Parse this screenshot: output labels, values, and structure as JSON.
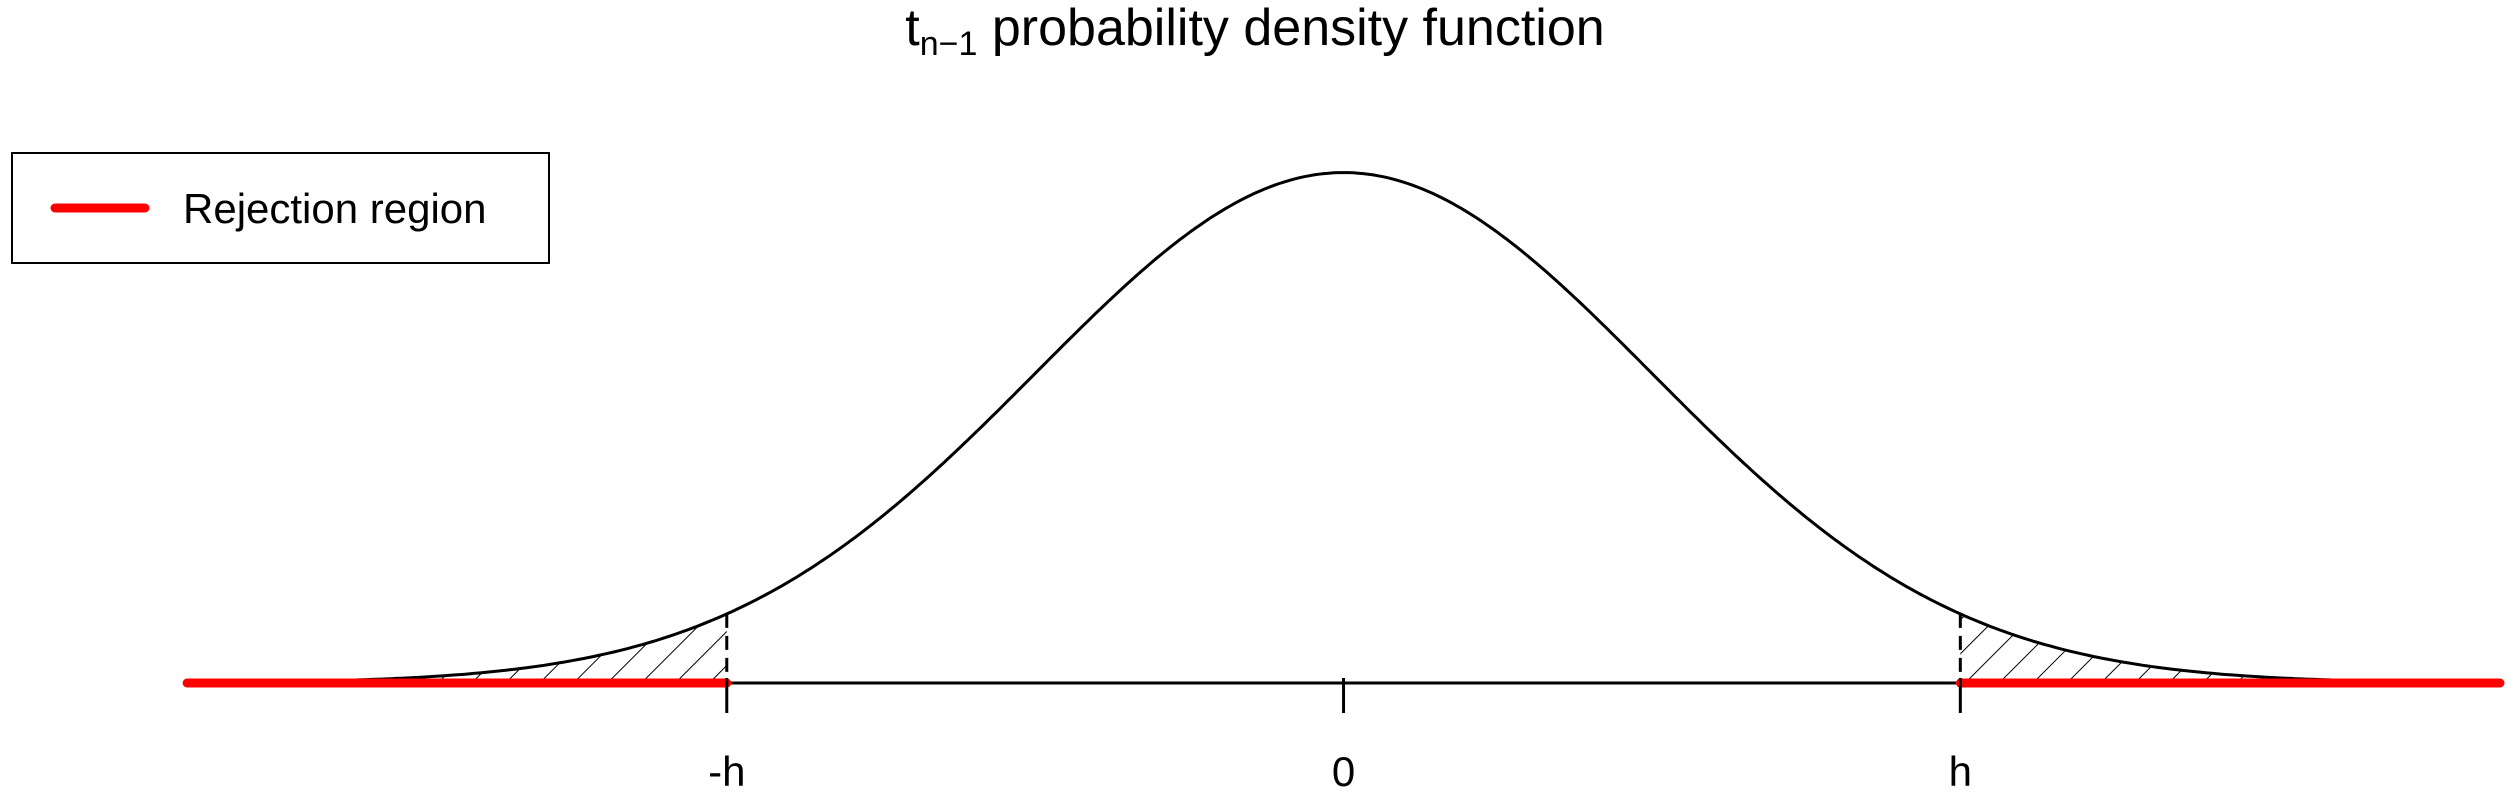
{
  "chart_data": {
    "type": "line",
    "title": {
      "main": "t",
      "subscript": "n−1",
      "rest": " probability density function"
    },
    "xlim": [
      -4,
      3.75
    ],
    "ylim": [
      0,
      0.4
    ],
    "grid": false,
    "density_curve": {
      "distribution": "t",
      "x_range": [
        -3.2,
        3.2
      ],
      "peak_at": 0
    },
    "critical_value": 2,
    "x_ticks": [
      {
        "value": -2,
        "label": "-h"
      },
      {
        "value": 0,
        "label": "0"
      },
      {
        "value": 2,
        "label": "h"
      }
    ],
    "rejection_regions": [
      {
        "from": -3.75,
        "to": -2
      },
      {
        "from": 2,
        "to": 3.75
      }
    ],
    "legend": {
      "placement": "top-left",
      "entries": [
        {
          "label": "Rejection region",
          "color": "#ff0000"
        }
      ]
    },
    "colors": {
      "curve": "#000000",
      "rejection": "#ff0000",
      "hatch": "#000000"
    }
  }
}
